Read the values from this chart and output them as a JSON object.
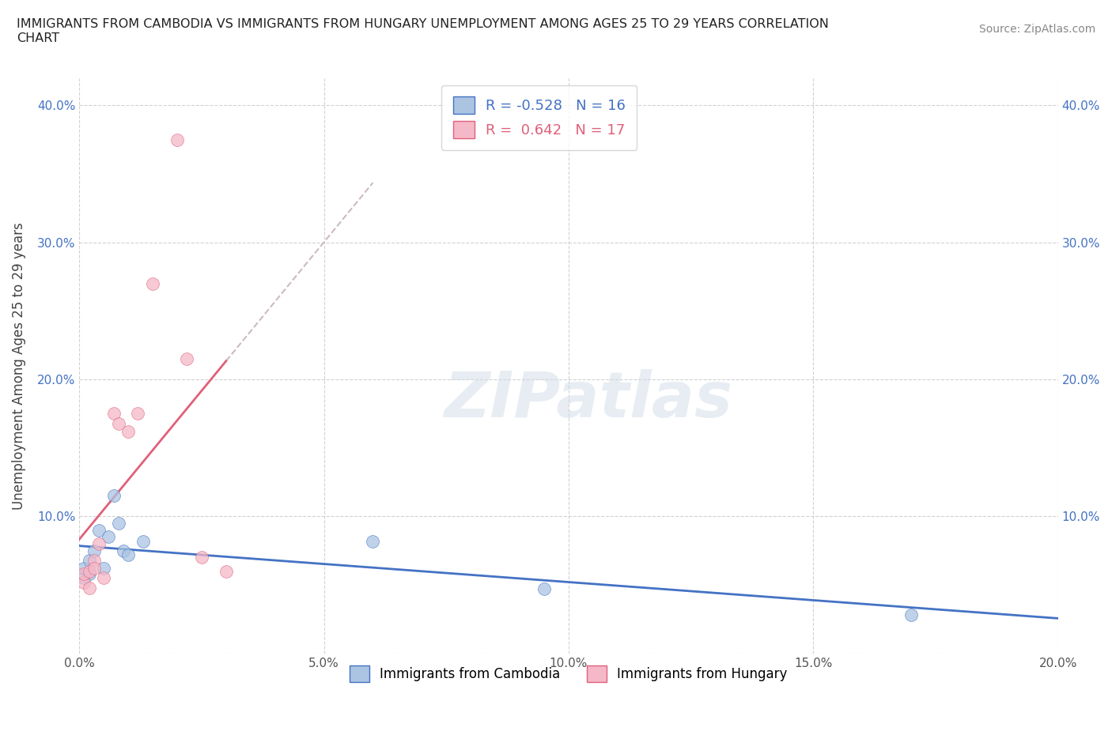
{
  "title": "IMMIGRANTS FROM CAMBODIA VS IMMIGRANTS FROM HUNGARY UNEMPLOYMENT AMONG AGES 25 TO 29 YEARS CORRELATION\nCHART",
  "source": "Source: ZipAtlas.com",
  "xlabel": "",
  "ylabel": "Unemployment Among Ages 25 to 29 years",
  "xlim": [
    0.0,
    0.2
  ],
  "ylim": [
    0.0,
    0.42
  ],
  "xticks": [
    0.0,
    0.05,
    0.1,
    0.15,
    0.2
  ],
  "xticklabels": [
    "0.0%",
    "5.0%",
    "10.0%",
    "15.0%",
    "20.0%"
  ],
  "yticks": [
    0.0,
    0.1,
    0.2,
    0.3,
    0.4
  ],
  "yticklabels": [
    "",
    "10.0%",
    "20.0%",
    "30.0%",
    "40.0%"
  ],
  "cambodia_x": [
    0.001,
    0.001,
    0.002,
    0.002,
    0.003,
    0.004,
    0.005,
    0.006,
    0.007,
    0.008,
    0.009,
    0.01,
    0.013,
    0.06,
    0.095,
    0.17
  ],
  "cambodia_y": [
    0.055,
    0.062,
    0.058,
    0.068,
    0.075,
    0.09,
    0.062,
    0.085,
    0.115,
    0.095,
    0.075,
    0.072,
    0.082,
    0.082,
    0.047,
    0.028
  ],
  "hungary_x": [
    0.001,
    0.001,
    0.002,
    0.002,
    0.003,
    0.003,
    0.004,
    0.005,
    0.007,
    0.008,
    0.01,
    0.012,
    0.015,
    0.02,
    0.022,
    0.025,
    0.03
  ],
  "hungary_y": [
    0.052,
    0.058,
    0.048,
    0.06,
    0.068,
    0.062,
    0.08,
    0.055,
    0.175,
    0.168,
    0.162,
    0.175,
    0.27,
    0.375,
    0.215,
    0.07,
    0.06
  ],
  "cambodia_color": "#aac4e2",
  "hungary_color": "#f4b8c8",
  "cambodia_line_color": "#4472c4",
  "hungary_line_color": "#e0607a",
  "watermark_text": "ZIPatlas",
  "R_cambodia": -0.528,
  "N_cambodia": 16,
  "R_hungary": 0.642,
  "N_hungary": 17,
  "legend_cambodia": "Immigrants from Cambodia",
  "legend_hungary": "Immigrants from Hungary",
  "background_color": "#ffffff",
  "grid_color": "#cccccc"
}
